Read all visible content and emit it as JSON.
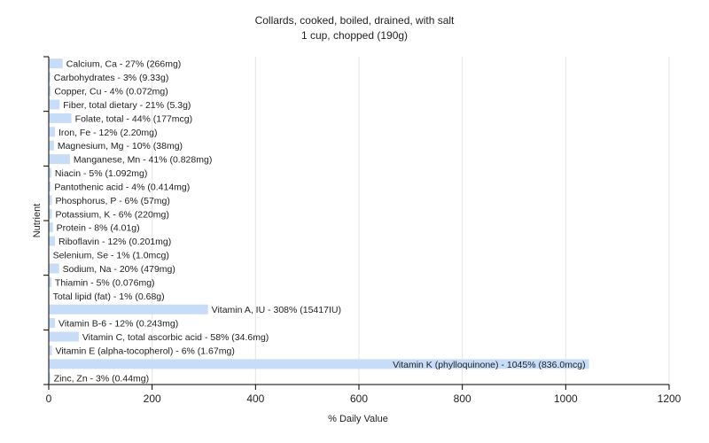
{
  "chart_data": {
    "type": "bar",
    "orientation": "horizontal",
    "title": "Collards, cooked, boiled, drained, with salt",
    "subtitle": "1 cup, chopped (190g)",
    "xlabel": "% Daily Value",
    "ylabel": "Nutrient",
    "xlim": [
      0,
      1200
    ],
    "xticks": [
      0,
      200,
      400,
      600,
      800,
      1000,
      1200
    ],
    "grid": true,
    "bar_color": "#c6dcf7",
    "categories": [
      "Calcium, Ca - 27% (266mg)",
      "Carbohydrates - 3% (9.33g)",
      "Copper, Cu - 4% (0.072mg)",
      "Fiber, total dietary - 21% (5.3g)",
      "Folate, total - 44% (177mcg)",
      "Iron, Fe - 12% (2.20mg)",
      "Magnesium, Mg - 10% (38mg)",
      "Manganese, Mn - 41% (0.828mg)",
      "Niacin - 5% (1.092mg)",
      "Pantothenic acid - 4% (0.414mg)",
      "Phosphorus, P - 6% (57mg)",
      "Potassium, K - 6% (220mg)",
      "Protein - 8% (4.01g)",
      "Riboflavin - 12% (0.201mg)",
      "Selenium, Se - 1% (1.0mcg)",
      "Sodium, Na - 20% (479mg)",
      "Thiamin - 5% (0.076mg)",
      "Total lipid (fat) - 1% (0.68g)",
      "Vitamin A, IU - 308% (15417IU)",
      "Vitamin B-6 - 12% (0.243mg)",
      "Vitamin C, total ascorbic acid - 58% (34.6mg)",
      "Vitamin E (alpha-tocopherol) - 6% (1.67mg)",
      "Vitamin K (phylloquinone) - 1045% (836.0mcg)",
      "Zinc, Zn - 3% (0.44mg)"
    ],
    "values": [
      27,
      3,
      4,
      21,
      44,
      12,
      10,
      41,
      5,
      4,
      6,
      6,
      8,
      12,
      1,
      20,
      5,
      1,
      308,
      12,
      58,
      6,
      1045,
      3
    ]
  }
}
